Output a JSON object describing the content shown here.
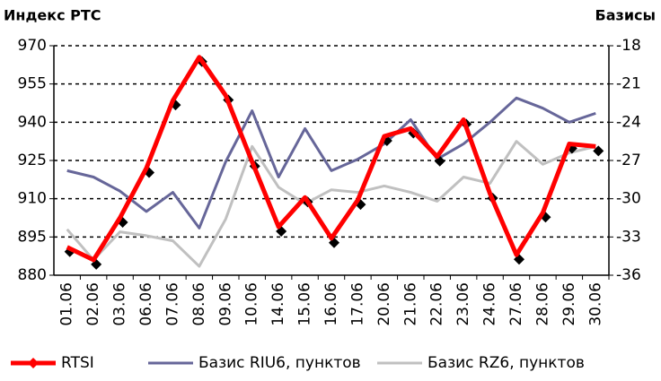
{
  "chart_data": {
    "type": "line",
    "title": "Индекс РТС",
    "y2_title": "Базисы",
    "categories": [
      "01.06",
      "02.06",
      "03.06",
      "06.06",
      "07.06",
      "08.06",
      "09.06",
      "10.06",
      "14.06",
      "15.06",
      "16.06",
      "17.06",
      "20.06",
      "21.06",
      "22.06",
      "23.06",
      "24.06",
      "27.06",
      "28.06",
      "29.06",
      "30.06"
    ],
    "series": [
      {
        "name": "RTSI",
        "color": "#ff0000",
        "axis": "y",
        "values": [
          891,
          886,
          902.5,
          922,
          948.5,
          965.5,
          950.5,
          924.5,
          899,
          910.5,
          894.5,
          909.5,
          934.5,
          937.5,
          926.5,
          941,
          912,
          888,
          904.5,
          931.5,
          930.5
        ]
      },
      {
        "name": "Базис RIU6, пунктов",
        "color": "#666699",
        "axis": "y2",
        "values": [
          -27.8,
          -28.3,
          -29.4,
          -31.0,
          -29.5,
          -32.3,
          -27.1,
          -23.1,
          -28.3,
          -24.5,
          -27.8,
          -26.9,
          -25.7,
          -23.8,
          -26.9,
          -25.7,
          -24.0,
          -22.1,
          -22.9,
          -24.0,
          -23.3
        ]
      },
      {
        "name": "Базис RZ6, пунктов",
        "color": "#c0c0c0",
        "axis": "y2",
        "values": [
          -32.4,
          -34.8,
          -32.6,
          -32.9,
          -33.3,
          -35.3,
          -31.6,
          -25.9,
          -29.1,
          -30.4,
          -29.3,
          -29.5,
          -29.0,
          -29.5,
          -30.2,
          -28.3,
          -28.8,
          -25.5,
          -27.3,
          -26.4,
          -25.9
        ]
      }
    ],
    "ylim": [
      880,
      970
    ],
    "yticks": [
      880,
      895,
      910,
      925,
      940,
      955,
      970
    ],
    "y2lim": [
      -36,
      -18
    ],
    "y2ticks": [
      -36,
      -33,
      -30,
      -27,
      -24,
      -21,
      -18
    ],
    "grid": true
  }
}
